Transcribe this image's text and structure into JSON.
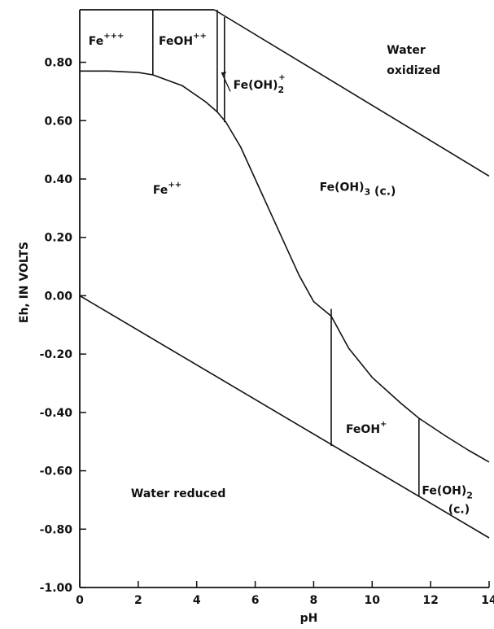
{
  "chart_data": {
    "type": "line",
    "title": "",
    "xlabel": "pH",
    "ylabel": "Eh, IN VOLTS",
    "xlim": [
      0,
      14
    ],
    "ylim": [
      -1.0,
      0.98
    ],
    "x_ticks": [
      0,
      2,
      4,
      6,
      8,
      10,
      12,
      14
    ],
    "x_tick_labels": [
      "0",
      "2",
      "4",
      "6",
      "8",
      "10",
      "12",
      "14"
    ],
    "y_ticks": [
      0.8,
      0.6,
      0.4,
      0.2,
      0.0,
      -0.2,
      -0.4,
      -0.6,
      -0.8,
      -1.0
    ],
    "y_tick_labels": [
      "0.80",
      "0.60",
      "0.40",
      "0.20",
      "0.00",
      "-0.20",
      "-0.40",
      "-0.60",
      "-0.80",
      "-1.00"
    ],
    "grid": false,
    "series": [
      {
        "id": "water-oxidized-line",
        "points": [
          [
            4.6,
            0.98
          ],
          [
            14,
            0.41
          ]
        ]
      },
      {
        "id": "water-reduced-line",
        "points": [
          [
            0,
            0.0
          ],
          [
            14,
            -0.83
          ]
        ]
      },
      {
        "id": "fe2-fe3-curve",
        "points": [
          [
            0,
            0.77
          ],
          [
            1,
            0.77
          ],
          [
            2,
            0.765
          ],
          [
            2.5,
            0.757
          ],
          [
            3.5,
            0.72
          ],
          [
            4.3,
            0.665
          ],
          [
            4.7,
            0.63
          ],
          [
            5.0,
            0.595
          ],
          [
            5.5,
            0.51
          ],
          [
            6.0,
            0.4
          ],
          [
            6.5,
            0.29
          ],
          [
            7.0,
            0.18
          ],
          [
            7.5,
            0.07
          ],
          [
            8.0,
            -0.02
          ],
          [
            8.6,
            -0.07
          ],
          [
            9.2,
            -0.18
          ],
          [
            10.0,
            -0.28
          ],
          [
            11.0,
            -0.37
          ],
          [
            11.6,
            -0.42
          ],
          [
            12.5,
            -0.48
          ],
          [
            13.3,
            -0.53
          ],
          [
            14,
            -0.57
          ]
        ]
      },
      {
        "id": "fe3-feoh2-boundary",
        "points": [
          [
            2.5,
            0.757
          ],
          [
            2.5,
            0.98
          ]
        ]
      },
      {
        "id": "feoh2-feoh2plus-boundary",
        "points": [
          [
            4.7,
            0.63
          ],
          [
            4.7,
            0.98
          ]
        ]
      },
      {
        "id": "feoh2plus-feoh3-boundary",
        "points": [
          [
            4.95,
            0.595
          ],
          [
            4.95,
            0.955
          ]
        ]
      },
      {
        "id": "fe2-feohplus-boundary",
        "points": [
          [
            8.6,
            -0.045
          ],
          [
            8.6,
            -0.515
          ]
        ]
      },
      {
        "id": "feohplus-feoh2c-boundary",
        "points": [
          [
            11.6,
            -0.42
          ],
          [
            11.6,
            -0.69
          ]
        ]
      }
    ],
    "annotations": [
      {
        "id": "fe3",
        "text": "Fe",
        "sup": "+++",
        "x": 0.3,
        "y": 0.86
      },
      {
        "id": "feoh2plus2",
        "text": "FeOH",
        "sup": "++",
        "x": 2.7,
        "y": 0.86
      },
      {
        "id": "feoh2plus",
        "text": "Fe(OH)",
        "sub": "2",
        "sup": "+",
        "x": 5.25,
        "y": 0.71
      },
      {
        "id": "water-oxidized-1",
        "text": "Water",
        "x": 10.5,
        "y": 0.83
      },
      {
        "id": "water-oxidized-2",
        "text": "oxidized",
        "x": 10.5,
        "y": 0.76
      },
      {
        "id": "fe2",
        "text": "Fe",
        "sup": "++",
        "x": 2.5,
        "y": 0.35
      },
      {
        "id": "feoh3c",
        "text": "Fe(OH)",
        "sub": "3",
        "after": " (c.)",
        "x": 8.2,
        "y": 0.36
      },
      {
        "id": "feohplus",
        "text": "FeOH",
        "sup": "+",
        "x": 9.1,
        "y": -0.47
      },
      {
        "id": "feoh2c-1",
        "text": "Fe(OH)",
        "sub": "2",
        "x": 11.7,
        "y": -0.68
      },
      {
        "id": "feoh2c-2",
        "text": "(c.)",
        "x": 12.6,
        "y": -0.745
      },
      {
        "id": "water-reduced",
        "text": "Water reduced",
        "x": 1.75,
        "y": -0.69
      }
    ]
  }
}
